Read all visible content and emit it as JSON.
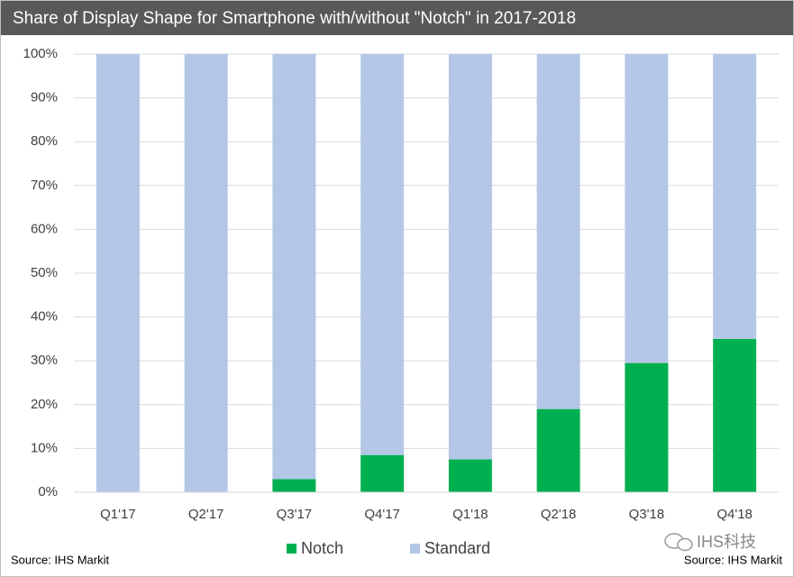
{
  "chart_data": {
    "type": "stacked-bar",
    "title": "Share of Display Shape for Smartphone with/without \"Notch\" in 2017-2018",
    "categories": [
      "Q1'17",
      "Q2'17",
      "Q3'17",
      "Q4'17",
      "Q1'18",
      "Q2'18",
      "Q3'18",
      "Q4'18"
    ],
    "series": [
      {
        "name": "Notch",
        "color": "#00b050",
        "values": [
          0,
          0,
          3,
          8.5,
          7.5,
          19,
          29.5,
          35
        ]
      },
      {
        "name": "Standard",
        "color": "#b4c7e7",
        "values": [
          100,
          100,
          97,
          91.5,
          92.5,
          81,
          70.5,
          65
        ]
      }
    ],
    "ylim": [
      0,
      100
    ],
    "yticks": [
      {
        "value": 0,
        "label": "0%"
      },
      {
        "value": 10,
        "label": "10%"
      },
      {
        "value": 20,
        "label": "20%"
      },
      {
        "value": 30,
        "label": "30%"
      },
      {
        "value": 40,
        "label": "40%"
      },
      {
        "value": 50,
        "label": "50%"
      },
      {
        "value": 60,
        "label": "60%"
      },
      {
        "value": 70,
        "label": "70%"
      },
      {
        "value": 80,
        "label": "80%"
      },
      {
        "value": 90,
        "label": "90%"
      },
      {
        "value": 100,
        "label": "100%"
      }
    ],
    "grid": true,
    "legend": "bottom",
    "source_left": "Source: IHS Markit",
    "source_right": "Source: IHS Markit",
    "watermark": "IHS科技"
  }
}
